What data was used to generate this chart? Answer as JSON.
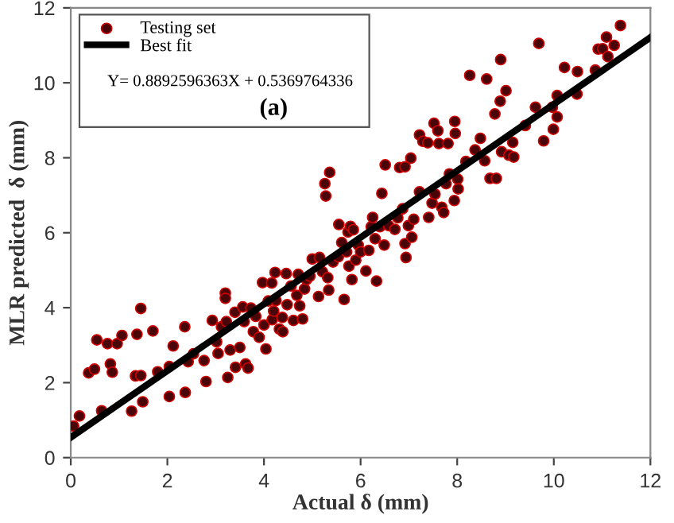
{
  "chart_data": {
    "type": "scatter",
    "xlabel": "Actual δ (mm)",
    "ylabel": "MLR predicted  δ (mm)",
    "xlim": [
      0,
      12
    ],
    "ylim": [
      0,
      12
    ],
    "xticks": [
      0,
      2,
      4,
      6,
      8,
      10,
      12
    ],
    "yticks": [
      0,
      2,
      4,
      6,
      8,
      10,
      12
    ],
    "grid": false,
    "legend": "top left",
    "annotations": [
      "Y= 0.8892596363X + 0.5369764336",
      "(a)"
    ],
    "series": [
      {
        "name": "Testing set",
        "marker": "circle",
        "color": "#4a0508",
        "x": [
          0.06,
          0.18,
          0.37,
          0.49,
          0.54,
          0.64,
          0.76,
          0.82,
          0.86,
          0.96,
          1.06,
          1.26,
          1.34,
          1.37,
          1.45,
          1.45,
          1.49,
          1.7,
          1.8,
          2.04,
          2.04,
          2.12,
          2.36,
          2.37,
          2.43,
          2.54,
          2.76,
          2.8,
          2.93,
          3.02,
          3.05,
          3.12,
          3.2,
          3.2,
          3.22,
          3.25,
          3.3,
          3.4,
          3.41,
          3.5,
          3.56,
          3.59,
          3.62,
          3.67,
          3.73,
          3.78,
          3.83,
          3.9,
          3.97,
          4.0,
          4.04,
          4.09,
          4.16,
          4.17,
          4.2,
          4.23,
          4.25,
          4.32,
          4.38,
          4.39,
          4.46,
          4.48,
          4.56,
          4.61,
          4.68,
          4.71,
          4.74,
          4.8,
          4.84,
          4.88,
          4.95,
          5.0,
          5.13,
          5.15,
          5.21,
          5.26,
          5.28,
          5.32,
          5.34,
          5.36,
          5.43,
          5.54,
          5.55,
          5.61,
          5.66,
          5.71,
          5.74,
          5.76,
          5.79,
          5.82,
          5.85,
          5.9,
          5.95,
          6.0,
          6.11,
          6.17,
          6.22,
          6.25,
          6.3,
          6.33,
          6.4,
          6.44,
          6.49,
          6.51,
          6.58,
          6.71,
          6.77,
          6.81,
          6.87,
          6.92,
          6.92,
          6.94,
          6.99,
          7.04,
          7.06,
          7.1,
          7.22,
          7.22,
          7.29,
          7.39,
          7.41,
          7.48,
          7.52,
          7.54,
          7.6,
          7.62,
          7.68,
          7.72,
          7.77,
          7.81,
          7.84,
          7.94,
          7.95,
          7.96,
          8.01,
          8.02,
          8.18,
          8.26,
          8.37,
          8.48,
          8.57,
          8.61,
          8.68,
          8.78,
          8.81,
          8.89,
          8.9,
          8.92,
          9.01,
          9.07,
          9.15,
          9.17,
          9.41,
          9.62,
          9.69,
          9.79,
          9.97,
          9.99,
          10.07,
          10.07,
          10.22,
          10.48,
          10.49,
          10.86,
          10.92,
          11.01,
          11.09,
          11.12,
          11.25,
          11.38
        ],
        "values": [
          0.84,
          1.11,
          2.26,
          2.36,
          3.14,
          1.25,
          3.04,
          2.5,
          2.28,
          3.04,
          3.26,
          1.24,
          2.18,
          3.29,
          3.98,
          2.19,
          1.49,
          3.38,
          2.29,
          1.63,
          2.43,
          2.98,
          3.49,
          1.74,
          2.56,
          2.77,
          2.59,
          2.03,
          3.66,
          3.09,
          2.78,
          3.49,
          4.39,
          4.25,
          3.63,
          2.14,
          2.87,
          3.88,
          2.41,
          2.94,
          4.02,
          3.63,
          2.5,
          2.39,
          3.99,
          3.36,
          3.77,
          3.21,
          4.67,
          3.54,
          2.9,
          4.18,
          4.66,
          3.68,
          3.91,
          4.94,
          4.19,
          3.43,
          3.74,
          3.36,
          4.91,
          4.08,
          4.58,
          3.66,
          4.33,
          4.89,
          4.05,
          3.7,
          4.5,
          4.75,
          4.84,
          5.3,
          4.3,
          5.34,
          4.96,
          7.31,
          6.98,
          4.8,
          4.47,
          7.61,
          5.22,
          5.36,
          6.22,
          5.74,
          4.22,
          5.49,
          6.02,
          5.11,
          6.17,
          4.75,
          6.08,
          5.27,
          5.67,
          5.49,
          4.98,
          5.53,
          6.16,
          6.41,
          5.84,
          4.71,
          6.16,
          7.05,
          5.67,
          7.81,
          6.19,
          6.09,
          6.4,
          7.74,
          6.64,
          7.76,
          5.71,
          5.34,
          6.19,
          7.99,
          5.88,
          6.36,
          7.09,
          8.61,
          8.44,
          8.4,
          6.41,
          6.79,
          8.92,
          7.03,
          8.72,
          8.38,
          6.68,
          6.54,
          7.31,
          8.38,
          7.57,
          6.86,
          8.97,
          8.65,
          7.43,
          7.17,
          7.9,
          10.2,
          8.21,
          8.52,
          7.92,
          10.1,
          7.45,
          9.17,
          7.45,
          9.51,
          10.62,
          8.16,
          9.79,
          8.07,
          8.41,
          8.02,
          8.86,
          9.35,
          11.05,
          8.45,
          9.35,
          8.76,
          9.66,
          9.09,
          10.41,
          9.7,
          10.3,
          10.34,
          10.9,
          10.91,
          11.22,
          10.7,
          11.0,
          11.53
        ]
      },
      {
        "name": "Best fit",
        "type": "line",
        "line_style": "solid",
        "marker": "none",
        "color": "#000000",
        "x": [
          0,
          12
        ],
        "values": [
          0.54,
          11.21
        ]
      }
    ]
  }
}
